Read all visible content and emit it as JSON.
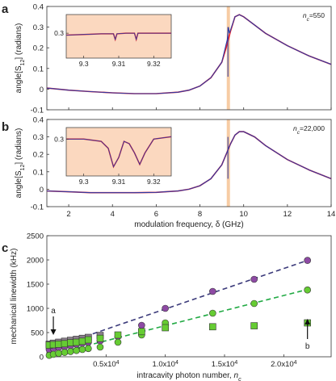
{
  "chart_data": [
    {
      "panel": "a",
      "type": "line",
      "ylabel": "angle[S12] (radians)",
      "xlim": [
        1,
        14
      ],
      "ylim": [
        -0.1,
        0.4
      ],
      "yticks": [
        "-0.1",
        "0",
        "0.1",
        "0.2",
        "0.3",
        "0.4"
      ],
      "annotation": "n_c=550",
      "vline_x": 9.3,
      "series": [
        {
          "color": "#ee1c25",
          "x": [
            1,
            2,
            3,
            4,
            5,
            6,
            7,
            7.5,
            8,
            8.5,
            9,
            9.2,
            9.4,
            9.6,
            9.8,
            10,
            10.5,
            11,
            12,
            13,
            14
          ],
          "y": [
            0.005,
            -0.005,
            -0.012,
            -0.018,
            -0.022,
            -0.022,
            -0.015,
            -0.005,
            0.015,
            0.055,
            0.13,
            0.2,
            0.28,
            0.35,
            0.36,
            0.35,
            0.31,
            0.27,
            0.21,
            0.16,
            0.12
          ]
        },
        {
          "color": "#2b3aa6",
          "x": [
            1,
            2,
            3,
            4,
            5,
            6,
            7,
            7.5,
            8,
            8.5,
            9,
            9.25,
            9.3,
            9.35,
            9.6,
            9.8,
            10,
            10.5,
            11,
            12,
            13,
            14
          ],
          "y": [
            0.005,
            -0.005,
            -0.012,
            -0.018,
            -0.022,
            -0.022,
            -0.015,
            -0.005,
            0.015,
            0.055,
            0.13,
            0.24,
            0.3,
            0.27,
            0.35,
            0.36,
            0.35,
            0.31,
            0.27,
            0.21,
            0.16,
            0.12
          ]
        }
      ],
      "inset": {
        "xticks": [
          "9.3",
          "9.31",
          "9.32"
        ],
        "xlim": [
          9.295,
          9.325
        ],
        "yticks": [
          "0.3"
        ],
        "ylim": [
          0.26,
          0.33
        ],
        "series_x": [
          9.295,
          9.3,
          9.305,
          9.3085,
          9.309,
          9.3095,
          9.312,
          9.3145,
          9.315,
          9.3155,
          9.32,
          9.325
        ],
        "series_y": [
          0.297,
          0.298,
          0.299,
          0.299,
          0.29,
          0.299,
          0.3,
          0.3,
          0.29,
          0.3,
          0.3,
          0.3
        ]
      }
    },
    {
      "panel": "b",
      "type": "line",
      "ylabel": "angle[S12] (radians)",
      "xlabel": "modulation frequency, δ (GHz)",
      "xlim": [
        1,
        14
      ],
      "ylim": [
        -0.1,
        0.4
      ],
      "xticks": [
        "2",
        "4",
        "6",
        "8",
        "10",
        "12",
        "14"
      ],
      "yticks": [
        "-0.1",
        "0",
        "0.1",
        "0.2",
        "0.3",
        "0.4"
      ],
      "annotation": "n_c=22,000",
      "vline_x": 9.3,
      "series": [
        {
          "color": "#ee1c25",
          "x": [
            1,
            2,
            3,
            4,
            5,
            6,
            7,
            7.5,
            8,
            8.5,
            9,
            9.2,
            9.4,
            9.6,
            9.8,
            10,
            10.5,
            11,
            12,
            13,
            14
          ],
          "y": [
            -0.01,
            -0.015,
            -0.02,
            -0.02,
            -0.02,
            -0.018,
            -0.01,
            0.0,
            0.02,
            0.06,
            0.14,
            0.2,
            0.26,
            0.31,
            0.33,
            0.33,
            0.3,
            0.25,
            0.17,
            0.11,
            0.06
          ]
        },
        {
          "color": "#2b3aa6",
          "x": [
            1,
            2,
            3,
            4,
            5,
            6,
            7,
            7.5,
            8,
            8.5,
            9,
            9.2,
            9.4,
            9.6,
            9.8,
            10,
            10.5,
            11,
            12,
            13,
            14
          ],
          "y": [
            -0.01,
            -0.015,
            -0.02,
            -0.02,
            -0.02,
            -0.018,
            -0.01,
            0.0,
            0.02,
            0.06,
            0.14,
            0.2,
            0.26,
            0.31,
            0.33,
            0.33,
            0.3,
            0.25,
            0.17,
            0.11,
            0.06
          ]
        }
      ],
      "inset": {
        "xticks": [
          "9.3",
          "9.31",
          "9.32"
        ],
        "xlim": [
          9.295,
          9.325
        ],
        "yticks": [
          "0.3"
        ],
        "ylim": [
          0.14,
          0.35
        ],
        "series_x": [
          9.295,
          9.3,
          9.305,
          9.307,
          9.3085,
          9.31,
          9.3115,
          9.313,
          9.3145,
          9.316,
          9.3175,
          9.32,
          9.325
        ],
        "series_y": [
          0.3,
          0.3,
          0.29,
          0.26,
          0.18,
          0.22,
          0.29,
          0.28,
          0.24,
          0.19,
          0.24,
          0.3,
          0.31
        ]
      }
    },
    {
      "panel": "c",
      "type": "scatter",
      "ylabel": "mechanical linewidth (kHz)",
      "xlabel": "intracavity photon number, n_c",
      "xlim": [
        0,
        24000
      ],
      "ylim": [
        0,
        2500
      ],
      "xticks": [
        "0.5x10^4",
        "1.0x10^4",
        "1.5x10^4",
        "2.0x10^4"
      ],
      "yticks": [
        "0",
        "500",
        "1000",
        "1500",
        "2000",
        "2500"
      ],
      "arrow_labels": [
        "a",
        "b"
      ],
      "series": [
        {
          "marker": "circle",
          "color": "#8e4aa4",
          "x": [
            200,
            550,
            1000,
            1500,
            2000,
            2500,
            3000,
            3500,
            4500,
            6000,
            8000,
            10000,
            14000,
            17500,
            22000
          ],
          "y": [
            150,
            170,
            190,
            210,
            230,
            260,
            280,
            300,
            330,
            420,
            650,
            1000,
            1350,
            1600,
            1990
          ]
        },
        {
          "marker": "circle",
          "color": "#66cc33",
          "x": [
            200,
            550,
            1000,
            1500,
            2000,
            2500,
            3000,
            3500,
            4500,
            6000,
            8000,
            10000,
            14000,
            17500,
            22000
          ],
          "y": [
            30,
            50,
            70,
            90,
            110,
            130,
            150,
            170,
            200,
            300,
            450,
            700,
            900,
            1100,
            1380
          ]
        },
        {
          "marker": "square",
          "color": "#8a7f8a",
          "x": [
            200,
            550,
            1000,
            1500,
            2000,
            2500,
            3000,
            3500,
            4500
          ],
          "y": [
            260,
            280,
            300,
            320,
            340,
            360,
            380,
            400,
            440
          ]
        },
        {
          "marker": "square",
          "color": "#66cc33",
          "x": [
            200,
            550,
            1000,
            1500,
            2000,
            2500,
            3000,
            3500,
            4500,
            6000,
            8000,
            10000,
            14000,
            17500,
            22000
          ],
          "y": [
            240,
            250,
            260,
            270,
            290,
            300,
            320,
            350,
            380,
            450,
            520,
            600,
            620,
            640,
            700
          ]
        }
      ],
      "fit_lines": [
        {
          "color": "#3b3a7a",
          "x": [
            0,
            22000
          ],
          "y": [
            150,
            1990
          ]
        },
        {
          "color": "#22aa44",
          "x": [
            0,
            22000
          ],
          "y": [
            20,
            1390
          ]
        }
      ]
    }
  ]
}
